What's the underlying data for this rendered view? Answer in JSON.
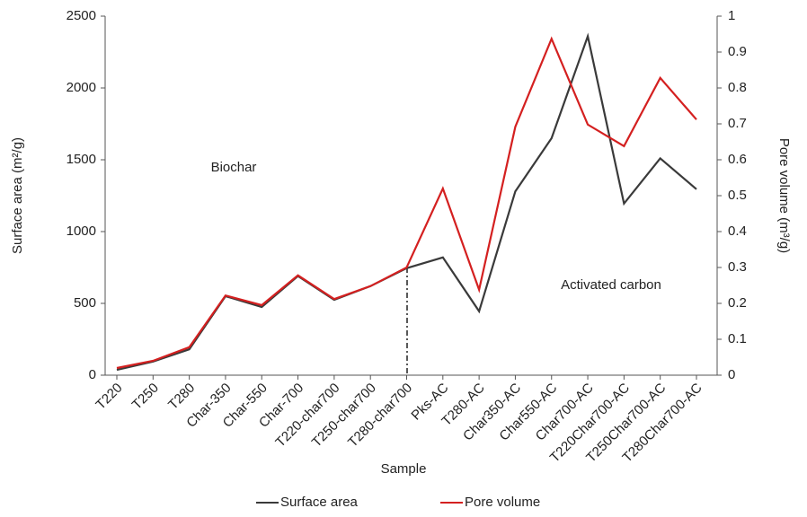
{
  "chart_data": {
    "type": "line",
    "x_label": "Sample",
    "y_label": "Surface area (m²/g)",
    "y2_label": "Pore volume (m³/g)",
    "annotations": [
      "Biochar",
      "Activated carbon"
    ],
    "categories": [
      "T220",
      "T250",
      "T280",
      "Char-350",
      "Char-550",
      "Char-700",
      "T220-char700",
      "T250-char700",
      "T280-char700",
      "Pks-AC",
      "T280-AC",
      "Char350-AC",
      "Char550-AC",
      "Char700-AC",
      "T220Char700-AC",
      "T250Char700-AC",
      "T280Char700-AC"
    ],
    "series": [
      {
        "name": "Surface area",
        "color": "#3a3a3a",
        "values": [
          37,
          95,
          180,
          550,
          475,
          690,
          525,
          620,
          745,
          820,
          445,
          1280,
          1650,
          2360,
          1195,
          1510,
          1295
        ]
      },
      {
        "name": "Pore volume",
        "color": "#d42020",
        "axis": "y2",
        "values": [
          0.02,
          0.04,
          0.078,
          0.222,
          0.195,
          0.278,
          0.212,
          0.248,
          0.3,
          0.52,
          0.238,
          0.692,
          0.937,
          0.698,
          0.638,
          0.828,
          0.712
        ]
      }
    ],
    "ylim": [
      0,
      2500
    ],
    "yticks": [
      0,
      500,
      1000,
      1500,
      2000,
      2500
    ],
    "y2lim": [
      0,
      1
    ],
    "y2ticks": [
      0,
      0.1,
      0.2,
      0.3,
      0.4,
      0.5,
      0.6,
      0.7,
      0.8,
      0.9,
      1
    ],
    "grid": false
  }
}
